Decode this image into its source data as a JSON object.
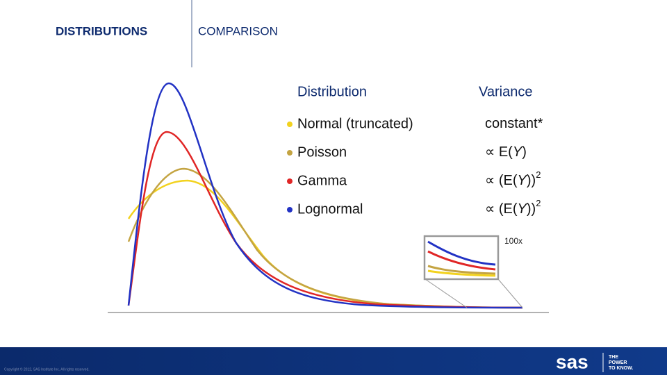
{
  "header": {
    "title": "DISTRIBUTIONS",
    "subtitle": "COMPARISON"
  },
  "table": {
    "columns": [
      "Distribution",
      "Variance"
    ],
    "rows": [
      {
        "name": "Normal (truncated)",
        "variance": {
          "text": [
            "constant*"
          ]
        }
      },
      {
        "name": "Poisson",
        "variance": {
          "text": [
            "∝ E(",
            "Y",
            ")"
          ]
        }
      },
      {
        "name": "Gamma",
        "variance": {
          "text": [
            "∝ (E(",
            "Y",
            "))"
          ],
          "sup": "2"
        }
      },
      {
        "name": "Lognormal",
        "variance": {
          "text": [
            "∝ (E(",
            "Y",
            "))"
          ],
          "sup": "2"
        }
      }
    ]
  },
  "inset_label": "100x",
  "footer": {
    "copyright": "Copyright © 2012, SAS Institute Inc. All rights reserved.",
    "logo": "sas",
    "tagline": [
      "THE",
      "POWER",
      "TO KNOW."
    ]
  }
}
